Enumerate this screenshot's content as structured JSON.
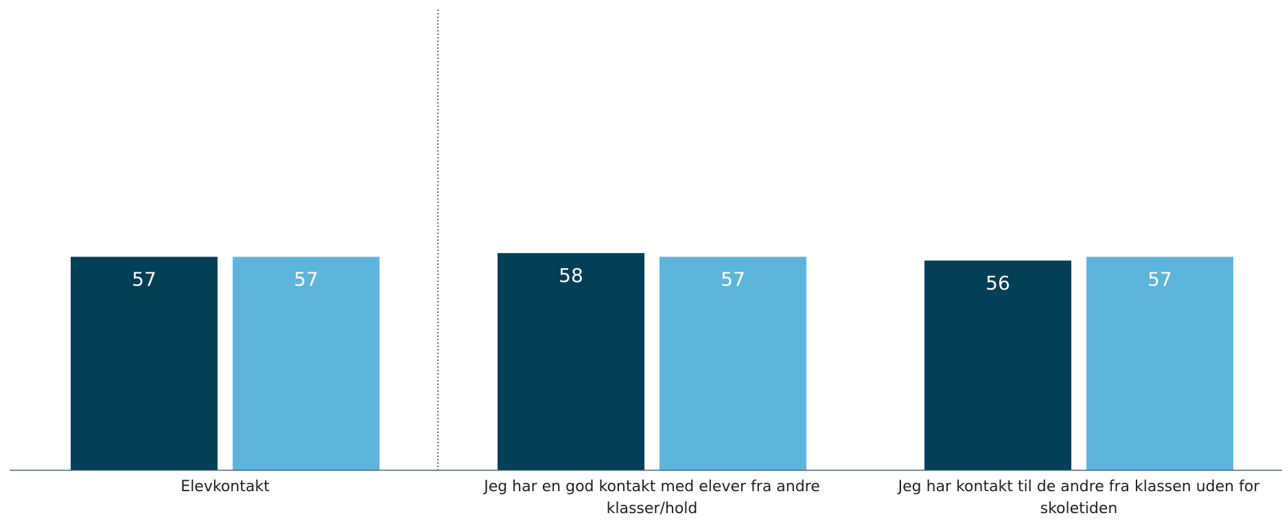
{
  "chart_data": {
    "type": "bar",
    "categories": [
      [
        "Elevkontakt"
      ],
      [
        "Jeg har en god kontakt med elever fra andre",
        "klasser/hold"
      ],
      [
        "Jeg har kontakt til de andre fra klassen uden for",
        "skoletiden"
      ]
    ],
    "series": [
      {
        "values": [
          57,
          58,
          56
        ],
        "color": "#033F56"
      },
      {
        "values": [
          57,
          57,
          57
        ],
        "color": "#5EB5DB"
      }
    ],
    "ylim": [
      0,
      100
    ],
    "grid": false,
    "legend": "none",
    "separator_after_category": 0,
    "value_label_color": "#ffffff",
    "axis_color": "#45607A"
  }
}
